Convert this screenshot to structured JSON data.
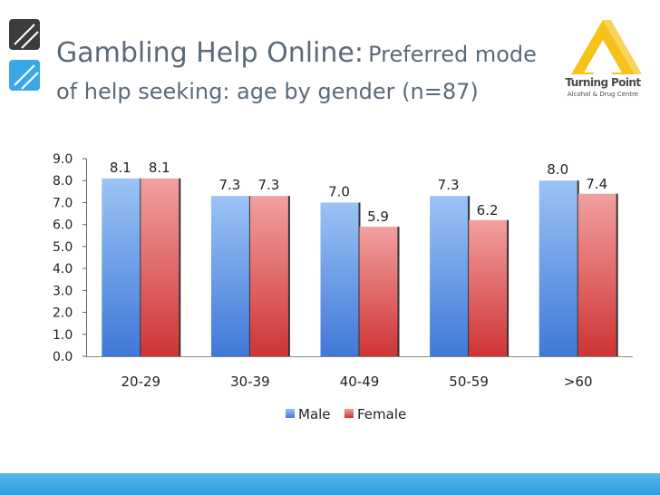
{
  "title": {
    "main": "Gambling Help Online:",
    "sub_inline": "Preferred mode",
    "line2": "of help seeking: age by gender (n=87)"
  },
  "logo": {
    "name": "Turning Point",
    "tagline": "Alcohol & Drug Centre"
  },
  "colors": {
    "title": "#5b6a79",
    "male": "#6f9fe6",
    "female": "#e05555",
    "logo_yellow": "#f6c21a",
    "footer": "#3aa8e6"
  },
  "chart_data": {
    "type": "bar",
    "categories": [
      "20-29",
      "30-39",
      "40-49",
      "50-59",
      ">60"
    ],
    "series": [
      {
        "name": "Male",
        "values": [
          8.1,
          7.3,
          7.0,
          7.3,
          8.0
        ],
        "labels": [
          "8.1",
          "7.3",
          "7.0",
          "7.3",
          "8.0"
        ]
      },
      {
        "name": "Female",
        "values": [
          8.1,
          7.3,
          5.9,
          6.2,
          7.4
        ],
        "labels": [
          "8.1",
          "7.3",
          "5.9",
          "6.2",
          "7.4"
        ]
      }
    ],
    "ylim": [
      0,
      9
    ],
    "yticks": [
      "0.0",
      "1.0",
      "2.0",
      "3.0",
      "4.0",
      "5.0",
      "6.0",
      "7.0",
      "8.0",
      "9.0"
    ],
    "legend_position": "bottom",
    "grid": false
  }
}
